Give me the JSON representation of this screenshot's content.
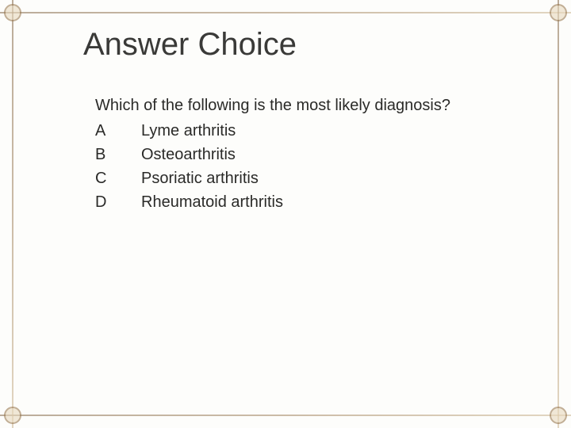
{
  "slide": {
    "title": "Answer Choice",
    "question": "Which of the following is the most likely diagnosis?",
    "choices": [
      {
        "label": "A",
        "text": "Lyme arthritis"
      },
      {
        "label": "B",
        "text": "Osteoarthritis"
      },
      {
        "label": "C",
        "text": "Psoriatic arthritis"
      },
      {
        "label": "D",
        "text": "Rheumatoid arthritis"
      }
    ],
    "colors": {
      "background": "#fdfdfb",
      "title_text": "#3a3a38",
      "body_text": "#2a2a28",
      "border": "#9a7a52",
      "corner_fill": "#e8d9be"
    },
    "typography": {
      "title_fontsize": 40,
      "body_fontsize": 20,
      "font_family": "Arial"
    }
  }
}
